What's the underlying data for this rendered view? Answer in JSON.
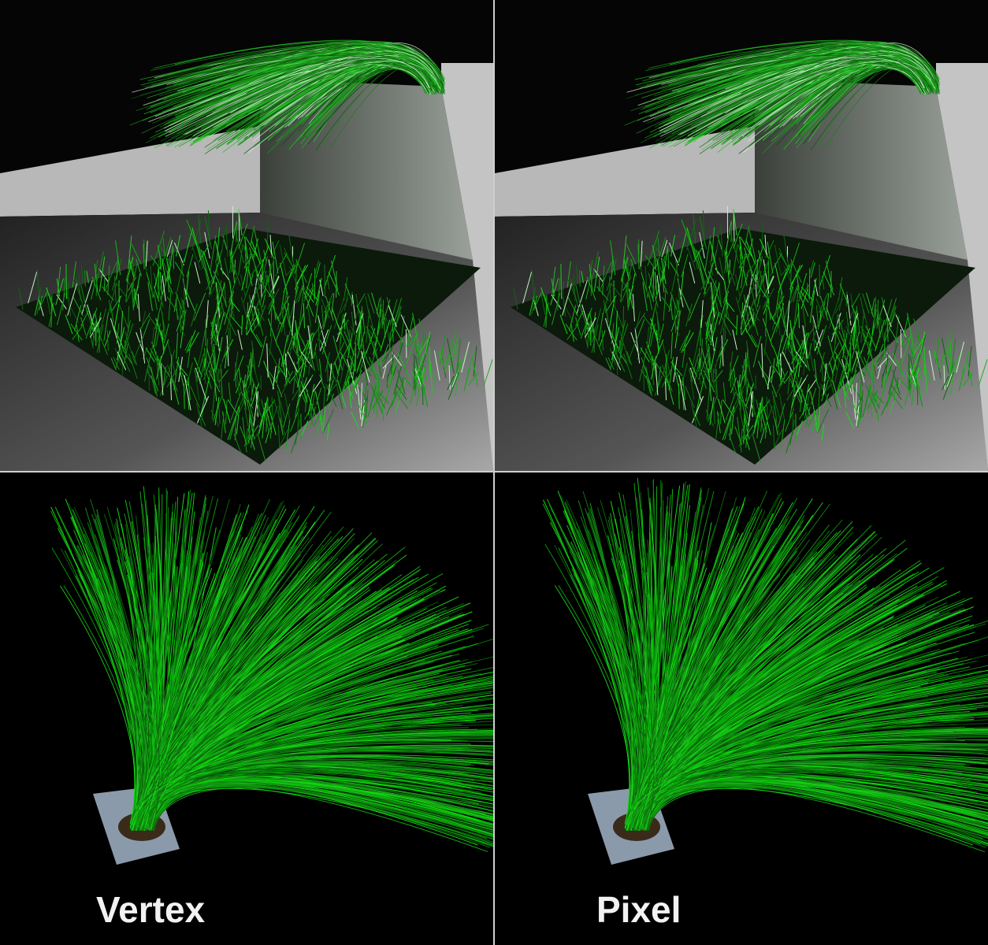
{
  "labels": {
    "left": "Vertex",
    "right": "Pixel"
  },
  "colors": {
    "grass": "#2fd02f",
    "grass_highlight": "#c8f0c8",
    "floor": "#8a8a8a",
    "wall": "#b4b4b4",
    "background": "#000000",
    "base_plate": "#8a9aaa"
  }
}
